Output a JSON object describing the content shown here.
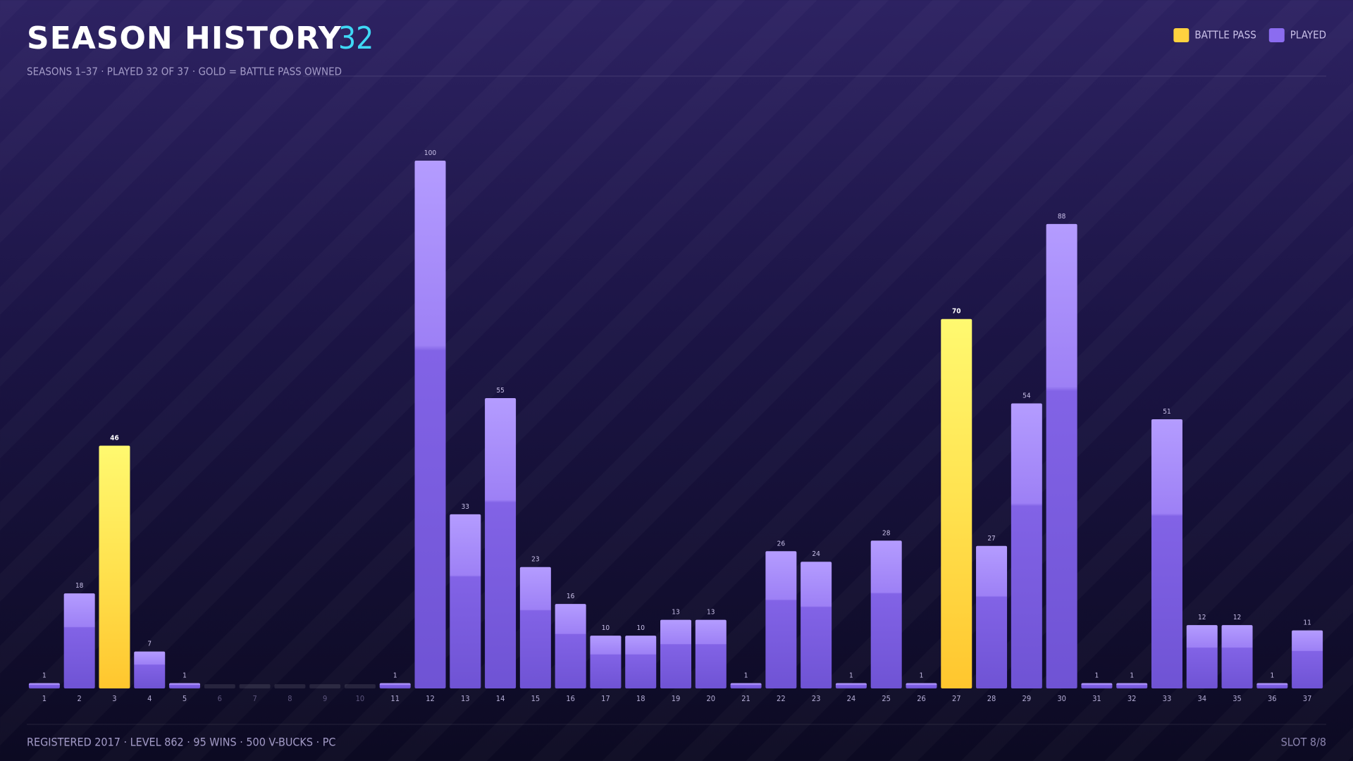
{
  "header": {
    "title": "SEASON HISTORY",
    "count": 32,
    "subtitle": "SEASONS 1–37 · PLAYED 32 OF 37 · GOLD = BATTLE PASS OWNED"
  },
  "chart_data": {
    "type": "bar",
    "legend": "top-right",
    "categories": [
      1,
      2,
      3,
      4,
      5,
      6,
      7,
      8,
      9,
      10,
      11,
      12,
      13,
      14,
      15,
      16,
      17,
      18,
      19,
      20,
      21,
      22,
      23,
      24,
      25,
      26,
      27,
      28,
      29,
      30,
      31,
      32,
      33,
      34,
      35,
      36,
      37
    ],
    "series": [
      {
        "name": "BATTLE PASS",
        "color": "#ffd23f",
        "values": [
          null,
          null,
          46,
          null,
          null,
          null,
          null,
          null,
          null,
          null,
          null,
          null,
          null,
          null,
          null,
          null,
          null,
          null,
          null,
          null,
          null,
          null,
          null,
          null,
          null,
          null,
          70,
          null,
          null,
          null,
          null,
          null,
          null,
          null,
          null,
          null,
          null
        ]
      },
      {
        "name": "PLAYED",
        "color": "#8b6cf0",
        "values": [
          1,
          18,
          null,
          7,
          1,
          null,
          null,
          null,
          null,
          null,
          1,
          100,
          33,
          55,
          23,
          16,
          10,
          10,
          13,
          13,
          1,
          26,
          24,
          1,
          28,
          1,
          null,
          27,
          54,
          88,
          1,
          1,
          51,
          12,
          12,
          1,
          11
        ]
      }
    ]
  },
  "footer": {
    "info": "REGISTERED 2017 · LEVEL 862 · 95 WINS · 500 V-BUCKS · PC",
    "slot": "SLOT 8/8"
  }
}
